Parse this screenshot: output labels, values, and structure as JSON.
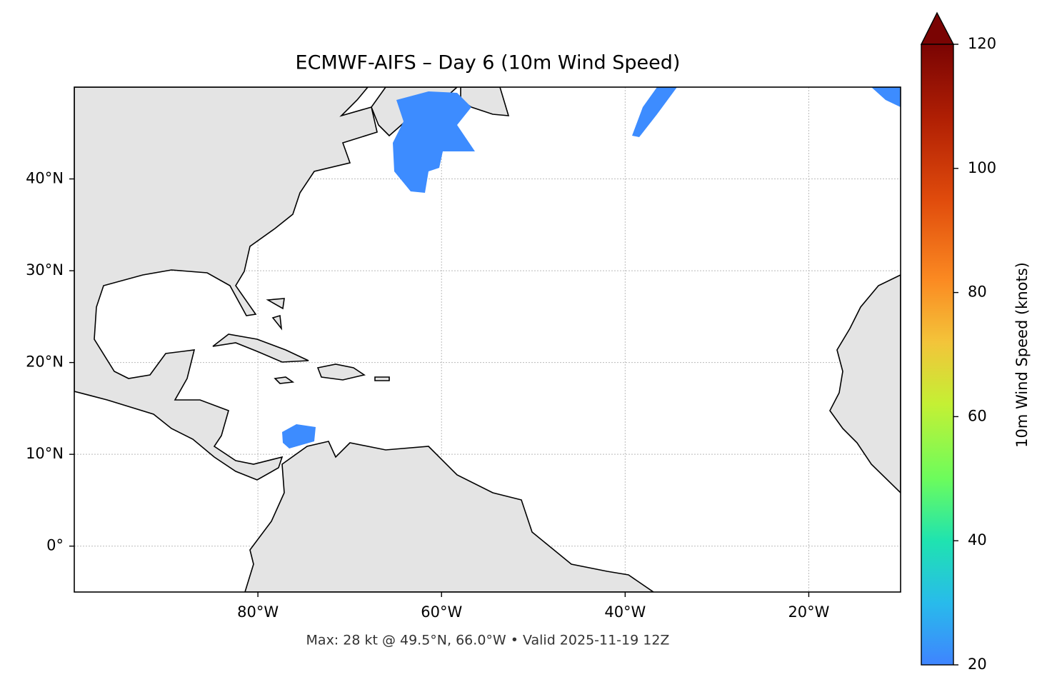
{
  "chart_data": {
    "type": "map",
    "title": "ECMWF-AIFS – Day 6 (10m Wind Speed)",
    "note": "Max: 28 kt @ 49.5°N, 66.0°W • Valid 2025-11-19 12Z",
    "xlim": [
      -100,
      -10
    ],
    "ylim": [
      -5,
      50
    ],
    "xticks": [
      {
        "value": -80,
        "label": "80°W"
      },
      {
        "value": -60,
        "label": "60°W"
      },
      {
        "value": -40,
        "label": "40°W"
      },
      {
        "value": -20,
        "label": "20°W"
      }
    ],
    "yticks": [
      {
        "value": 0,
        "label": "0°"
      },
      {
        "value": 10,
        "label": "10°N"
      },
      {
        "value": 20,
        "label": "20°N"
      },
      {
        "value": 30,
        "label": "30°N"
      },
      {
        "value": 40,
        "label": "40°N"
      }
    ],
    "grid": true,
    "colorbar": {
      "label": "10m Wind Speed (knots)",
      "lim": [
        20,
        120
      ],
      "ticks": [
        20,
        40,
        60,
        80,
        100,
        120
      ]
    }
  }
}
